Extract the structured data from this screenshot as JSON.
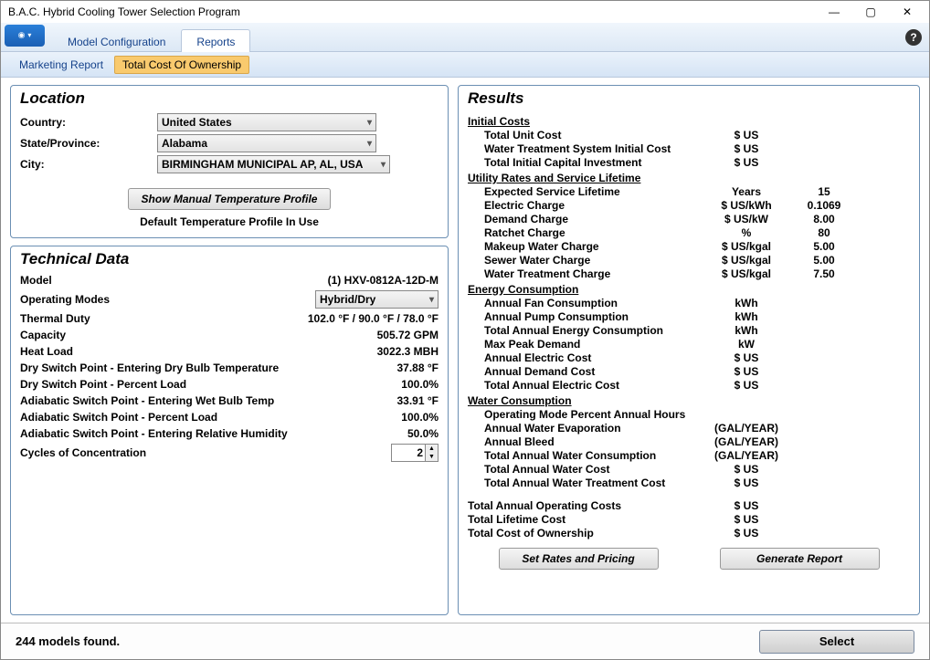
{
  "window": {
    "title": "B.A.C. Hybrid Cooling Tower Selection Program"
  },
  "ribbon": {
    "tabs": [
      "Model Configuration",
      "Reports"
    ],
    "active": 1
  },
  "subtabs": {
    "items": [
      "Marketing Report",
      "Total Cost Of Ownership"
    ],
    "active": 1
  },
  "location": {
    "title": "Location",
    "country_label": "Country:",
    "country": "United States",
    "state_label": "State/Province:",
    "state": "Alabama",
    "city_label": "City:",
    "city": "BIRMINGHAM MUNICIPAL AP, AL, USA",
    "profile_btn": "Show Manual Temperature Profile",
    "profile_note": "Default Temperature Profile In Use"
  },
  "technical": {
    "title": "Technical Data",
    "rows": {
      "model_l": "Model",
      "model_v": "(1) HXV-0812A-12D-M",
      "modes_l": "Operating Modes",
      "modes_v": "Hybrid/Dry",
      "duty_l": "Thermal Duty",
      "duty_v": "102.0 °F / 90.0 °F / 78.0 °F",
      "cap_l": "Capacity",
      "cap_v": "505.72 GPM",
      "heat_l": "Heat Load",
      "heat_v": "3022.3 MBH",
      "dsp_edbt_l": "Dry Switch Point - Entering Dry Bulb Temperature",
      "dsp_edbt_v": "37.88 °F",
      "dsp_pl_l": "Dry Switch Point - Percent Load",
      "dsp_pl_v": "100.0%",
      "asp_ewbt_l": "Adiabatic Switch Point - Entering Wet Bulb Temp",
      "asp_ewbt_v": "33.91 °F",
      "asp_pl_l": "Adiabatic Switch Point - Percent Load",
      "asp_pl_v": "100.0%",
      "asp_rh_l": "Adiabatic Switch Point - Entering Relative Humidity",
      "asp_rh_v": "50.0%",
      "coc_l": "Cycles of Concentration",
      "coc_v": "2"
    }
  },
  "results": {
    "title": "Results",
    "set_rates_btn": "Set Rates and Pricing",
    "generate_btn": "Generate Report",
    "sections": {
      "initial": {
        "hdr": "Initial Costs",
        "items": [
          [
            "Total Unit Cost",
            "$ US",
            ""
          ],
          [
            "Water Treatment System Initial Cost",
            "$ US",
            ""
          ],
          [
            "Total Initial Capital Investment",
            "$ US",
            ""
          ]
        ]
      },
      "utility": {
        "hdr": "Utility Rates and Service Lifetime",
        "items": [
          [
            "Expected Service Lifetime",
            "Years",
            "15"
          ],
          [
            "Electric Charge",
            "$ US/kWh",
            "0.1069"
          ],
          [
            "Demand Charge",
            "$ US/kW",
            "8.00"
          ],
          [
            "Ratchet Charge",
            "%",
            "80"
          ],
          [
            "Makeup Water Charge",
            "$ US/kgal",
            "5.00"
          ],
          [
            "Sewer Water Charge",
            "$ US/kgal",
            "5.00"
          ],
          [
            "Water Treatment Charge",
            "$ US/kgal",
            "7.50"
          ]
        ]
      },
      "energy": {
        "hdr": "Energy Consumption",
        "items": [
          [
            "Annual Fan Consumption",
            "kWh",
            ""
          ],
          [
            "Annual Pump Consumption",
            "kWh",
            ""
          ],
          [
            "Total Annual Energy Consumption",
            "kWh",
            ""
          ],
          [
            "Max Peak Demand",
            "kW",
            ""
          ],
          [
            "",
            "",
            ""
          ],
          [
            "Annual Electric Cost",
            "$ US",
            ""
          ],
          [
            "Annual Demand Cost",
            "$ US",
            ""
          ],
          [
            "Total Annual Electric Cost",
            "$ US",
            ""
          ]
        ]
      },
      "water": {
        "hdr": "Water Consumption",
        "items": [
          [
            "Operating Mode Percent Annual Hours",
            "",
            ""
          ],
          [
            "",
            "",
            ""
          ],
          [
            "Annual Water Evaporation",
            "(GAL/YEAR)",
            ""
          ],
          [
            "Annual Bleed",
            "(GAL/YEAR)",
            ""
          ],
          [
            "Total Annual Water Consumption",
            "(GAL/YEAR)",
            ""
          ],
          [
            "Total Annual Water Cost",
            "$ US",
            ""
          ],
          [
            "Total Annual Water Treatment Cost",
            "$ US",
            ""
          ]
        ]
      },
      "totals": {
        "items": [
          [
            "Total Annual Operating Costs",
            "$ US",
            ""
          ],
          [
            "Total Lifetime Cost",
            "$ US",
            ""
          ],
          [
            "Total Cost of Ownership",
            "$ US",
            ""
          ]
        ]
      }
    }
  },
  "footer": {
    "status": "244 models found.",
    "select": "Select"
  }
}
